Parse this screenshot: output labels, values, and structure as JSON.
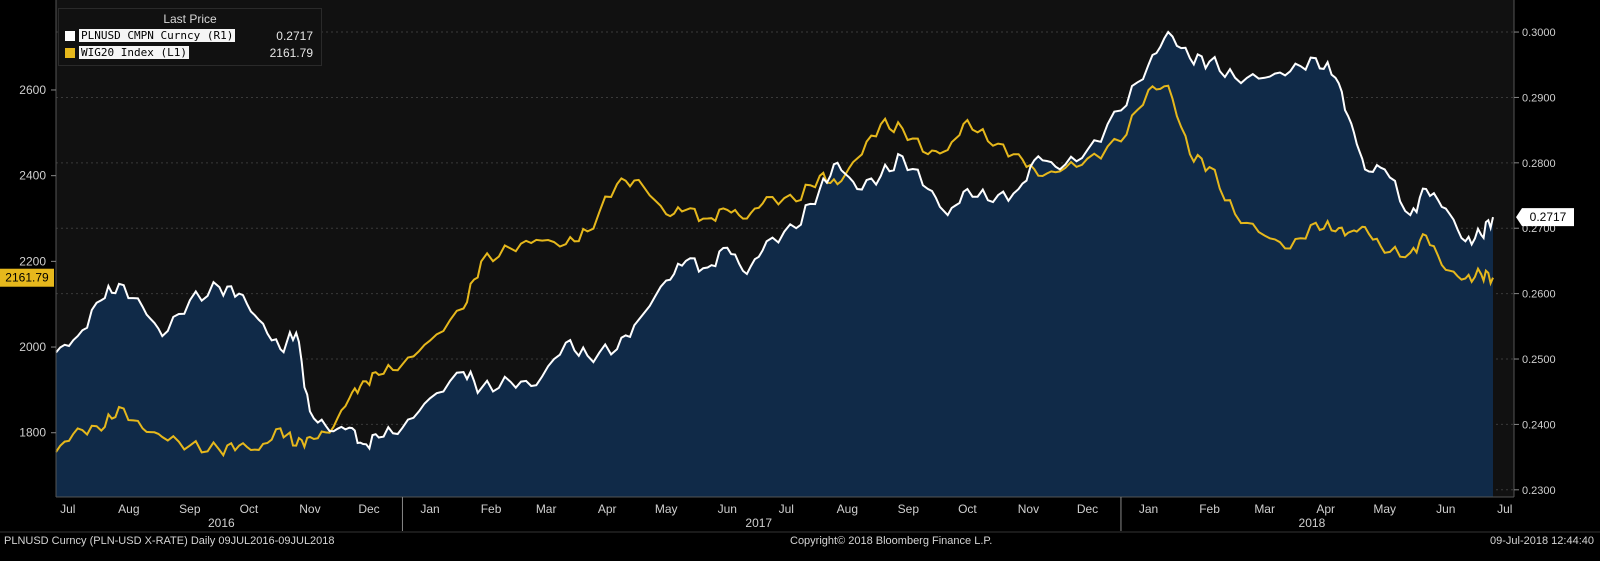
{
  "colors": {
    "background": "#000000",
    "plot_background": "#111111",
    "area_fill": "#102a48",
    "pln_line": "#ffffff",
    "wig_line": "#e6b81c",
    "grid": "#3a3a3a",
    "axis_text": "#cfcfcf"
  },
  "legend": {
    "title": "Last Price",
    "items": [
      {
        "label": "PLNUSD CMPN Curncy  (R1)",
        "value": "0.2717",
        "color": "#ffffff"
      },
      {
        "label": "WIG20 Index  (L1)",
        "value": "2161.79",
        "color": "#e6b81c"
      }
    ]
  },
  "footer": {
    "left": "PLNUSD Curncy (PLN-USD X-RATE)  Daily 09JUL2016-09JUL2018",
    "center": "Copyright© 2018 Bloomberg Finance L.P.",
    "right": "09-Jul-2018 12:44:40"
  },
  "chart_data": {
    "type": "line",
    "left_axis": {
      "ticks": [
        1800,
        2000,
        2200,
        2400,
        2600
      ],
      "range": [
        1650,
        2810
      ]
    },
    "right_axis": {
      "ticks": [
        "0.2300",
        "0.2400",
        "0.2500",
        "0.2600",
        "0.2700",
        "0.2800",
        "0.2900",
        "0.3000"
      ],
      "range": [
        0.2289,
        0.3049
      ]
    },
    "x_months": [
      "Jul",
      "Aug",
      "Sep",
      "Oct",
      "Nov",
      "Dec",
      "Jan",
      "Feb",
      "Mar",
      "Apr",
      "May",
      "Jun",
      "Jul",
      "Aug",
      "Sep",
      "Oct",
      "Nov",
      "Dec",
      "Jan",
      "Feb",
      "Mar",
      "Apr",
      "May",
      "Jun",
      "Jul"
    ],
    "x_years": [
      "2016",
      "2017",
      "2018"
    ],
    "last_value_tags": {
      "left": "2161.79",
      "right": "0.2717"
    },
    "series": [
      {
        "name": "PLNUSD CMPN Curncy",
        "axis": "right",
        "points": [
          [
            "2016-07-09",
            0.251
          ],
          [
            "2016-07-20",
            0.2535
          ],
          [
            "2016-08-01",
            0.259
          ],
          [
            "2016-08-10",
            0.2615
          ],
          [
            "2016-08-22",
            0.258
          ],
          [
            "2016-09-01",
            0.2535
          ],
          [
            "2016-09-15",
            0.259
          ],
          [
            "2016-09-30",
            0.261
          ],
          [
            "2016-10-10",
            0.26
          ],
          [
            "2016-10-20",
            0.256
          ],
          [
            "2016-10-31",
            0.2515
          ],
          [
            "2016-11-08",
            0.254
          ],
          [
            "2016-11-15",
            0.242
          ],
          [
            "2016-11-25",
            0.239
          ],
          [
            "2016-12-05",
            0.2395
          ],
          [
            "2016-12-12",
            0.237
          ],
          [
            "2016-12-20",
            0.238
          ],
          [
            "2017-01-01",
            0.2395
          ],
          [
            "2017-01-15",
            0.244
          ],
          [
            "2017-02-01",
            0.248
          ],
          [
            "2017-02-10",
            0.2455
          ],
          [
            "2017-02-25",
            0.2465
          ],
          [
            "2017-03-10",
            0.246
          ],
          [
            "2017-03-25",
            0.2525
          ],
          [
            "2017-04-05",
            0.2505
          ],
          [
            "2017-04-20",
            0.2515
          ],
          [
            "2017-05-01",
            0.256
          ],
          [
            "2017-05-15",
            0.262
          ],
          [
            "2017-05-25",
            0.265
          ],
          [
            "2017-06-05",
            0.264
          ],
          [
            "2017-06-15",
            0.267
          ],
          [
            "2017-06-25",
            0.263
          ],
          [
            "2017-07-05",
            0.268
          ],
          [
            "2017-07-20",
            0.27
          ],
          [
            "2017-08-01",
            0.276
          ],
          [
            "2017-08-10",
            0.28
          ],
          [
            "2017-08-20",
            0.276
          ],
          [
            "2017-09-01",
            0.278
          ],
          [
            "2017-09-12",
            0.281
          ],
          [
            "2017-09-25",
            0.276
          ],
          [
            "2017-10-05",
            0.272
          ],
          [
            "2017-10-15",
            0.276
          ],
          [
            "2017-10-28",
            0.274
          ],
          [
            "2017-11-10",
            0.276
          ],
          [
            "2017-11-20",
            0.281
          ],
          [
            "2017-12-01",
            0.279
          ],
          [
            "2017-12-15",
            0.282
          ],
          [
            "2018-01-01",
            0.288
          ],
          [
            "2018-01-15",
            0.295
          ],
          [
            "2018-01-25",
            0.3
          ],
          [
            "2018-02-05",
            0.296
          ],
          [
            "2018-02-15",
            0.2955
          ],
          [
            "2018-02-28",
            0.293
          ],
          [
            "2018-03-15",
            0.293
          ],
          [
            "2018-03-28",
            0.294
          ],
          [
            "2018-04-10",
            0.296
          ],
          [
            "2018-04-20",
            0.293
          ],
          [
            "2018-04-28",
            0.286
          ],
          [
            "2018-05-05",
            0.279
          ],
          [
            "2018-05-15",
            0.279
          ],
          [
            "2018-05-28",
            0.272
          ],
          [
            "2018-06-05",
            0.276
          ],
          [
            "2018-06-15",
            0.273
          ],
          [
            "2018-06-25",
            0.268
          ],
          [
            "2018-07-03",
            0.269
          ],
          [
            "2018-07-09",
            0.2717
          ]
        ]
      },
      {
        "name": "WIG20 Index",
        "axis": "left",
        "points": [
          [
            "2016-07-09",
            1755
          ],
          [
            "2016-07-20",
            1810
          ],
          [
            "2016-08-01",
            1805
          ],
          [
            "2016-08-10",
            1860
          ],
          [
            "2016-08-22",
            1810
          ],
          [
            "2016-09-01",
            1790
          ],
          [
            "2016-09-15",
            1770
          ],
          [
            "2016-09-30",
            1760
          ],
          [
            "2016-10-10",
            1770
          ],
          [
            "2016-10-20",
            1760
          ],
          [
            "2016-10-31",
            1810
          ],
          [
            "2016-11-08",
            1770
          ],
          [
            "2016-11-15",
            1790
          ],
          [
            "2016-11-25",
            1800
          ],
          [
            "2016-12-05",
            1880
          ],
          [
            "2016-12-12",
            1920
          ],
          [
            "2016-12-20",
            1935
          ],
          [
            "2017-01-01",
            1960
          ],
          [
            "2017-01-15",
            2015
          ],
          [
            "2017-02-01",
            2090
          ],
          [
            "2017-02-10",
            2200
          ],
          [
            "2017-02-25",
            2230
          ],
          [
            "2017-03-10",
            2250
          ],
          [
            "2017-03-25",
            2240
          ],
          [
            "2017-04-05",
            2270
          ],
          [
            "2017-04-20",
            2380
          ],
          [
            "2017-05-01",
            2390
          ],
          [
            "2017-05-15",
            2310
          ],
          [
            "2017-05-25",
            2320
          ],
          [
            "2017-06-05",
            2300
          ],
          [
            "2017-06-15",
            2320
          ],
          [
            "2017-06-25",
            2300
          ],
          [
            "2017-07-05",
            2350
          ],
          [
            "2017-07-20",
            2340
          ],
          [
            "2017-08-01",
            2400
          ],
          [
            "2017-08-10",
            2380
          ],
          [
            "2017-08-20",
            2440
          ],
          [
            "2017-09-01",
            2520
          ],
          [
            "2017-09-12",
            2510
          ],
          [
            "2017-09-25",
            2450
          ],
          [
            "2017-10-05",
            2460
          ],
          [
            "2017-10-15",
            2530
          ],
          [
            "2017-10-28",
            2470
          ],
          [
            "2017-11-10",
            2450
          ],
          [
            "2017-11-20",
            2400
          ],
          [
            "2017-12-01",
            2410
          ],
          [
            "2017-12-15",
            2440
          ],
          [
            "2018-01-01",
            2480
          ],
          [
            "2018-01-15",
            2600
          ],
          [
            "2018-01-25",
            2610
          ],
          [
            "2018-02-05",
            2450
          ],
          [
            "2018-02-15",
            2420
          ],
          [
            "2018-02-28",
            2310
          ],
          [
            "2018-03-15",
            2260
          ],
          [
            "2018-03-28",
            2230
          ],
          [
            "2018-04-10",
            2290
          ],
          [
            "2018-04-20",
            2270
          ],
          [
            "2018-04-28",
            2270
          ],
          [
            "2018-05-05",
            2280
          ],
          [
            "2018-05-15",
            2220
          ],
          [
            "2018-05-28",
            2220
          ],
          [
            "2018-06-05",
            2260
          ],
          [
            "2018-06-15",
            2180
          ],
          [
            "2018-06-25",
            2160
          ],
          [
            "2018-07-03",
            2170
          ],
          [
            "2018-07-09",
            2161.79
          ]
        ]
      }
    ]
  }
}
